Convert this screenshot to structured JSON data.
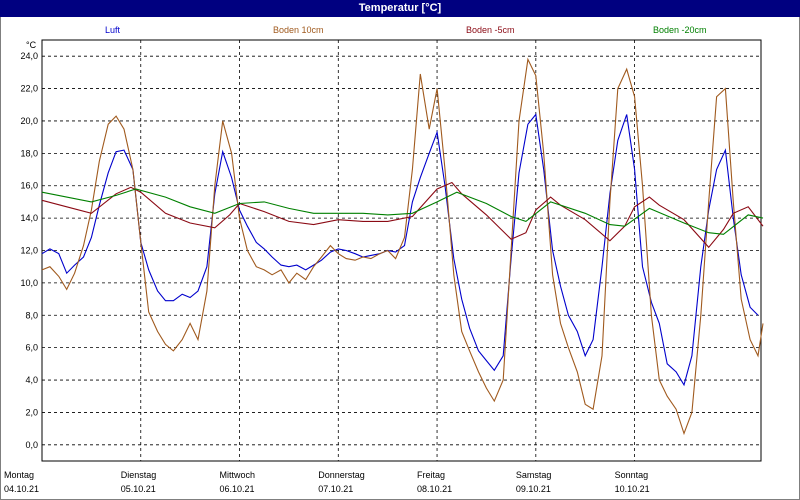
{
  "window": {
    "title": "Temperatur [°C]"
  },
  "chart_data": {
    "type": "line",
    "title": "Temperatur [°C]",
    "ylabel": "°C",
    "ylim": [
      -1,
      25
    ],
    "grid": true,
    "legend_position": "top",
    "yticks": [
      "24,0",
      "22,0",
      "20,0",
      "18,0",
      "16,0",
      "14,0",
      "12,0",
      "10,0",
      "8,0",
      "6,0",
      "4,0",
      "2,0",
      "0,0"
    ],
    "ytick_values": [
      24,
      22,
      20,
      18,
      16,
      14,
      12,
      10,
      8,
      6,
      4,
      2,
      0
    ],
    "xaxis": [
      {
        "day": "Montag",
        "date": "04.10.21"
      },
      {
        "day": "Dienstag",
        "date": "05.10.21"
      },
      {
        "day": "Mittwoch",
        "date": "06.10.21"
      },
      {
        "day": "Donnerstag",
        "date": "07.10.21"
      },
      {
        "day": "Freitag",
        "date": "08.10.21"
      },
      {
        "day": "Samstag",
        "date": "09.10.21"
      },
      {
        "day": "Sonntag",
        "date": "10.10.21"
      }
    ],
    "x_days": 7,
    "series": [
      {
        "name": "Luft",
        "color": "#0000cc",
        "points": [
          [
            0,
            11.8
          ],
          [
            0.08,
            12.1
          ],
          [
            0.17,
            11.8
          ],
          [
            0.25,
            10.6
          ],
          [
            0.33,
            11.1
          ],
          [
            0.42,
            11.6
          ],
          [
            0.5,
            12.8
          ],
          [
            0.58,
            14.8
          ],
          [
            0.67,
            16.8
          ],
          [
            0.75,
            18.1
          ],
          [
            0.83,
            18.2
          ],
          [
            0.92,
            17.0
          ],
          [
            1.0,
            12.5
          ],
          [
            1.08,
            10.8
          ],
          [
            1.17,
            9.5
          ],
          [
            1.25,
            8.9
          ],
          [
            1.33,
            8.9
          ],
          [
            1.42,
            9.3
          ],
          [
            1.5,
            9.1
          ],
          [
            1.58,
            9.5
          ],
          [
            1.67,
            11.0
          ],
          [
            1.75,
            15.5
          ],
          [
            1.83,
            18.1
          ],
          [
            1.92,
            16.5
          ],
          [
            2.0,
            14.5
          ],
          [
            2.08,
            13.5
          ],
          [
            2.17,
            12.5
          ],
          [
            2.25,
            12.1
          ],
          [
            2.33,
            11.6
          ],
          [
            2.42,
            11.1
          ],
          [
            2.5,
            11.0
          ],
          [
            2.58,
            11.1
          ],
          [
            2.67,
            10.8
          ],
          [
            2.75,
            11.1
          ],
          [
            2.83,
            11.4
          ],
          [
            2.92,
            11.9
          ],
          [
            3.0,
            12.1
          ],
          [
            3.08,
            12.0
          ],
          [
            3.17,
            11.8
          ],
          [
            3.25,
            11.6
          ],
          [
            3.33,
            11.7
          ],
          [
            3.42,
            11.8
          ],
          [
            3.5,
            12.0
          ],
          [
            3.58,
            11.9
          ],
          [
            3.67,
            12.3
          ],
          [
            3.75,
            15.0
          ],
          [
            3.83,
            16.5
          ],
          [
            3.92,
            18.0
          ],
          [
            4.0,
            19.3
          ],
          [
            4.08,
            16.0
          ],
          [
            4.17,
            11.5
          ],
          [
            4.25,
            9.0
          ],
          [
            4.33,
            7.2
          ],
          [
            4.42,
            5.8
          ],
          [
            4.5,
            5.2
          ],
          [
            4.58,
            4.6
          ],
          [
            4.67,
            5.5
          ],
          [
            4.75,
            11.5
          ],
          [
            4.83,
            16.8
          ],
          [
            4.92,
            19.8
          ],
          [
            5.0,
            20.4
          ],
          [
            5.08,
            17.0
          ],
          [
            5.17,
            12.0
          ],
          [
            5.25,
            9.8
          ],
          [
            5.33,
            8.0
          ],
          [
            5.42,
            7.0
          ],
          [
            5.5,
            5.5
          ],
          [
            5.58,
            6.5
          ],
          [
            5.67,
            11.0
          ],
          [
            5.75,
            15.5
          ],
          [
            5.83,
            18.8
          ],
          [
            5.92,
            20.4
          ],
          [
            6.0,
            17.0
          ],
          [
            6.08,
            11.0
          ],
          [
            6.17,
            8.8
          ],
          [
            6.25,
            7.5
          ],
          [
            6.33,
            5.0
          ],
          [
            6.42,
            4.5
          ],
          [
            6.5,
            3.7
          ],
          [
            6.58,
            5.5
          ],
          [
            6.67,
            11.0
          ],
          [
            6.75,
            14.5
          ],
          [
            6.83,
            17.0
          ],
          [
            6.92,
            18.2
          ],
          [
            7.0,
            14.0
          ],
          [
            7.08,
            10.5
          ],
          [
            7.17,
            8.5
          ],
          [
            7.25,
            8.0
          ]
        ]
      },
      {
        "name": "Boden 10cm",
        "color": "#a05a1e",
        "points": [
          [
            0,
            10.8
          ],
          [
            0.08,
            11.0
          ],
          [
            0.17,
            10.4
          ],
          [
            0.25,
            9.6
          ],
          [
            0.33,
            10.6
          ],
          [
            0.42,
            12.3
          ],
          [
            0.5,
            14.5
          ],
          [
            0.58,
            17.5
          ],
          [
            0.67,
            19.8
          ],
          [
            0.75,
            20.3
          ],
          [
            0.83,
            19.5
          ],
          [
            0.92,
            17.0
          ],
          [
            1.0,
            12.5
          ],
          [
            1.08,
            8.2
          ],
          [
            1.17,
            7.0
          ],
          [
            1.25,
            6.2
          ],
          [
            1.33,
            5.8
          ],
          [
            1.42,
            6.5
          ],
          [
            1.5,
            7.5
          ],
          [
            1.58,
            6.5
          ],
          [
            1.67,
            9.5
          ],
          [
            1.75,
            16.0
          ],
          [
            1.83,
            20.0
          ],
          [
            1.92,
            18.0
          ],
          [
            2.0,
            14.0
          ],
          [
            2.08,
            12.0
          ],
          [
            2.17,
            11.0
          ],
          [
            2.25,
            10.8
          ],
          [
            2.33,
            10.5
          ],
          [
            2.42,
            10.8
          ],
          [
            2.5,
            10.0
          ],
          [
            2.58,
            10.6
          ],
          [
            2.67,
            10.2
          ],
          [
            2.75,
            11.0
          ],
          [
            2.83,
            11.6
          ],
          [
            2.92,
            12.3
          ],
          [
            3.0,
            11.8
          ],
          [
            3.08,
            11.5
          ],
          [
            3.17,
            11.4
          ],
          [
            3.25,
            11.6
          ],
          [
            3.33,
            11.5
          ],
          [
            3.42,
            11.8
          ],
          [
            3.5,
            12.0
          ],
          [
            3.58,
            11.5
          ],
          [
            3.67,
            12.8
          ],
          [
            3.75,
            17.0
          ],
          [
            3.83,
            22.9
          ],
          [
            3.92,
            19.5
          ],
          [
            4.0,
            22.0
          ],
          [
            4.08,
            17.0
          ],
          [
            4.17,
            10.5
          ],
          [
            4.25,
            7.0
          ],
          [
            4.33,
            5.8
          ],
          [
            4.42,
            4.5
          ],
          [
            4.5,
            3.5
          ],
          [
            4.58,
            2.7
          ],
          [
            4.67,
            4.0
          ],
          [
            4.75,
            12.0
          ],
          [
            4.83,
            20.0
          ],
          [
            4.92,
            23.8
          ],
          [
            5.0,
            22.8
          ],
          [
            5.08,
            18.0
          ],
          [
            5.17,
            10.5
          ],
          [
            5.25,
            7.5
          ],
          [
            5.33,
            6.0
          ],
          [
            5.42,
            4.5
          ],
          [
            5.5,
            2.5
          ],
          [
            5.58,
            2.2
          ],
          [
            5.67,
            5.5
          ],
          [
            5.75,
            15.0
          ],
          [
            5.83,
            22.0
          ],
          [
            5.92,
            23.2
          ],
          [
            6.0,
            21.5
          ],
          [
            6.08,
            16.0
          ],
          [
            6.17,
            8.0
          ],
          [
            6.25,
            4.0
          ],
          [
            6.33,
            3.0
          ],
          [
            6.42,
            2.2
          ],
          [
            6.5,
            0.7
          ],
          [
            6.58,
            2.0
          ],
          [
            6.67,
            8.0
          ],
          [
            6.75,
            15.0
          ],
          [
            6.83,
            21.5
          ],
          [
            6.92,
            22.0
          ],
          [
            7.0,
            15.0
          ],
          [
            7.08,
            9.0
          ],
          [
            7.17,
            6.5
          ],
          [
            7.25,
            5.5
          ],
          [
            7.3,
            7.5
          ]
        ]
      },
      {
        "name": "Boden -5cm",
        "color": "#8b0a14",
        "points": [
          [
            0,
            15.1
          ],
          [
            0.25,
            14.7
          ],
          [
            0.5,
            14.3
          ],
          [
            0.75,
            15.5
          ],
          [
            0.9,
            15.9
          ],
          [
            1.0,
            15.6
          ],
          [
            1.25,
            14.3
          ],
          [
            1.5,
            13.7
          ],
          [
            1.75,
            13.4
          ],
          [
            1.9,
            14.2
          ],
          [
            2.0,
            14.9
          ],
          [
            2.25,
            14.4
          ],
          [
            2.5,
            13.8
          ],
          [
            2.75,
            13.6
          ],
          [
            3.0,
            13.9
          ],
          [
            3.25,
            13.8
          ],
          [
            3.5,
            13.8
          ],
          [
            3.75,
            14.1
          ],
          [
            4.0,
            15.8
          ],
          [
            4.15,
            16.2
          ],
          [
            4.25,
            15.5
          ],
          [
            4.5,
            14.2
          ],
          [
            4.75,
            12.7
          ],
          [
            4.9,
            13.1
          ],
          [
            5.0,
            14.5
          ],
          [
            5.15,
            15.3
          ],
          [
            5.25,
            14.8
          ],
          [
            5.5,
            13.9
          ],
          [
            5.75,
            12.6
          ],
          [
            5.9,
            13.5
          ],
          [
            6.0,
            14.7
          ],
          [
            6.15,
            15.3
          ],
          [
            6.25,
            14.8
          ],
          [
            6.5,
            13.9
          ],
          [
            6.75,
            12.2
          ],
          [
            6.9,
            13.3
          ],
          [
            7.0,
            14.3
          ],
          [
            7.15,
            14.7
          ],
          [
            7.3,
            13.5
          ]
        ]
      },
      {
        "name": "Boden -20cm",
        "color": "#008000",
        "points": [
          [
            0,
            15.6
          ],
          [
            0.25,
            15.3
          ],
          [
            0.5,
            15.0
          ],
          [
            0.75,
            15.4
          ],
          [
            0.95,
            15.8
          ],
          [
            1.25,
            15.3
          ],
          [
            1.5,
            14.7
          ],
          [
            1.75,
            14.3
          ],
          [
            2.0,
            14.9
          ],
          [
            2.25,
            15.0
          ],
          [
            2.5,
            14.6
          ],
          [
            2.75,
            14.3
          ],
          [
            3.0,
            14.3
          ],
          [
            3.25,
            14.3
          ],
          [
            3.5,
            14.2
          ],
          [
            3.75,
            14.3
          ],
          [
            4.0,
            15.0
          ],
          [
            4.2,
            15.6
          ],
          [
            4.5,
            14.9
          ],
          [
            4.75,
            14.1
          ],
          [
            4.9,
            13.8
          ],
          [
            5.15,
            15.0
          ],
          [
            5.5,
            14.3
          ],
          [
            5.75,
            13.6
          ],
          [
            5.9,
            13.5
          ],
          [
            6.15,
            14.6
          ],
          [
            6.5,
            13.7
          ],
          [
            6.75,
            13.1
          ],
          [
            6.9,
            13.0
          ],
          [
            7.15,
            14.2
          ],
          [
            7.3,
            14.0
          ]
        ]
      }
    ]
  }
}
